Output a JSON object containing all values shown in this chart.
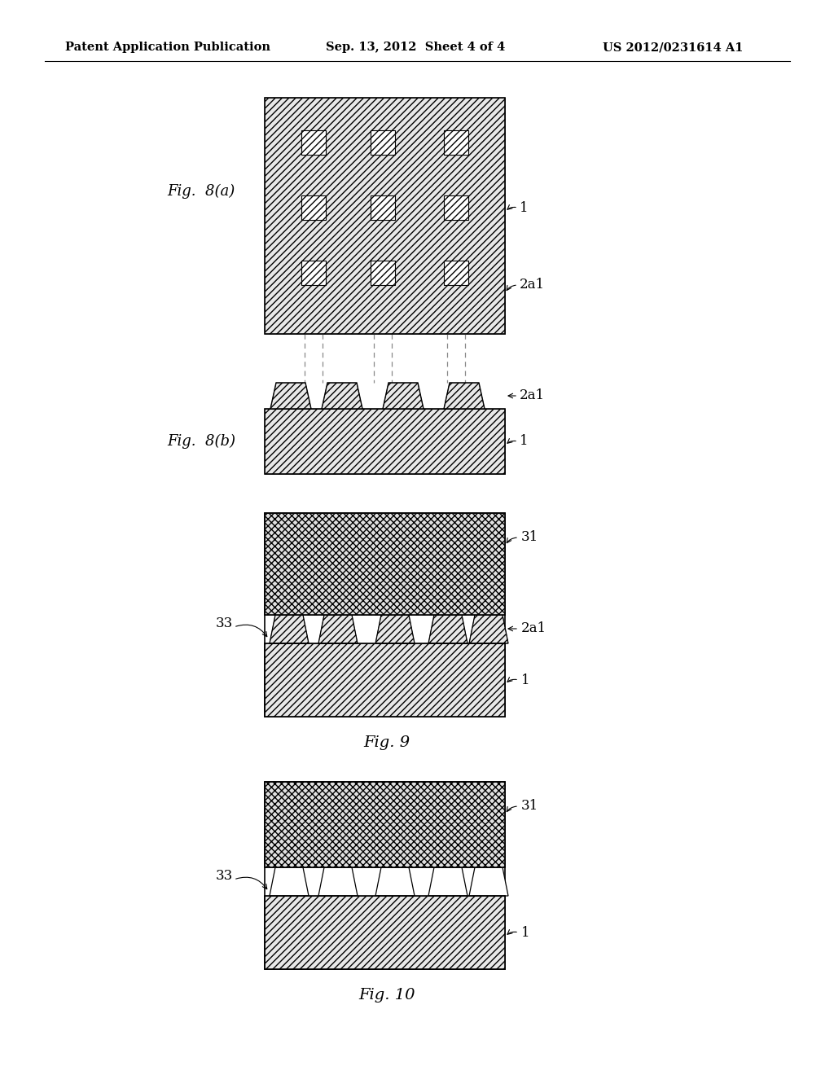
{
  "background_color": "#ffffff",
  "header_left": "Patent Application Publication",
  "header_center": "Sep. 13, 2012  Sheet 4 of 4",
  "header_right": "US 2012/0231614 A1",
  "header_fontsize": 10.5,
  "fig8a_label": "Fig.  8(a)",
  "fig8b_label": "Fig.  8(b)",
  "fig9_label": "Fig. 9",
  "fig10_label": "Fig. 10",
  "label_fontsize": 13,
  "annot_fontsize": 12,
  "hatch_color": "#555555",
  "cross_hatch_color": "#555555",
  "fig_face_color": "#e8e8e8",
  "cross_face_color": "#e0e0e0"
}
